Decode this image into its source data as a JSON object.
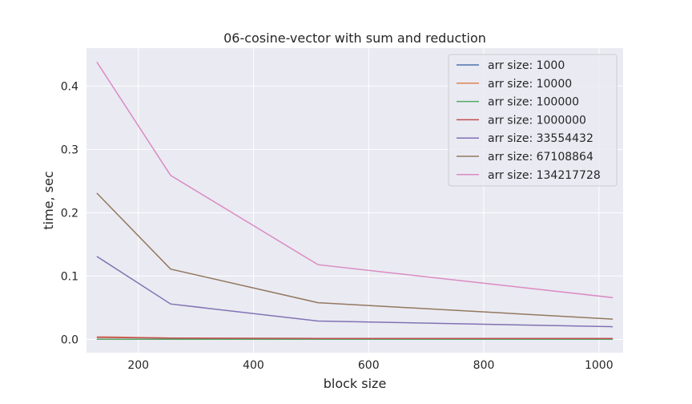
{
  "chart_data": {
    "type": "line",
    "title": "06-cosine-vector with sum and reduction",
    "xlabel": "block size",
    "ylabel": "time, sec",
    "x": [
      128,
      256,
      512,
      1024
    ],
    "xlim": [
      110,
      1042
    ],
    "ylim": [
      -0.021,
      0.46
    ],
    "xticks": [
      200,
      400,
      600,
      800,
      1000
    ],
    "xtick_labels": [
      "200",
      "400",
      "600",
      "800",
      "1000"
    ],
    "yticks": [
      0.0,
      0.1,
      0.2,
      0.3,
      0.4
    ],
    "ytick_labels": [
      "0.0",
      "0.1",
      "0.2",
      "0.3",
      "0.4"
    ],
    "grid": true,
    "legend_position": "top-right",
    "series": [
      {
        "name": "arr size: 1000",
        "color": "#4c72b0",
        "values": [
          0.0001,
          0.0001,
          0.0001,
          0.0001
        ]
      },
      {
        "name": "arr size: 10000",
        "color": "#dd8452",
        "values": [
          0.004,
          0.002,
          0.001,
          0.0005
        ]
      },
      {
        "name": "arr size: 100000",
        "color": "#55a868",
        "values": [
          0.0003,
          0.0003,
          0.0003,
          0.0003
        ]
      },
      {
        "name": "arr size: 1000000",
        "color": "#c44e52",
        "values": [
          0.003,
          0.002,
          0.0015,
          0.0015
        ]
      },
      {
        "name": "arr size: 33554432",
        "color": "#8172b3",
        "values": [
          0.131,
          0.056,
          0.029,
          0.02
        ]
      },
      {
        "name": "arr size: 67108864",
        "color": "#937860",
        "values": [
          0.231,
          0.111,
          0.058,
          0.032
        ]
      },
      {
        "name": "arr size: 134217728",
        "color": "#da8bc3",
        "values": [
          0.438,
          0.259,
          0.118,
          0.066
        ]
      }
    ]
  }
}
